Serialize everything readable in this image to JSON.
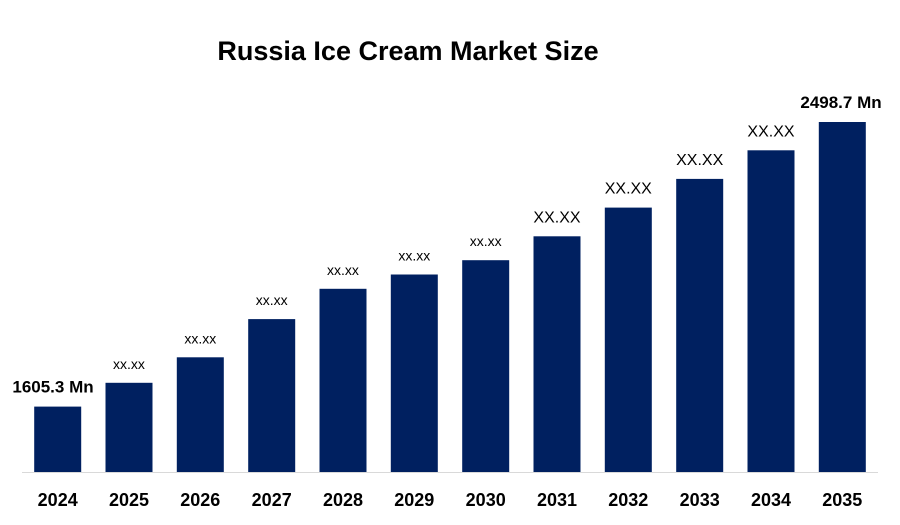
{
  "chart_data": {
    "type": "bar",
    "title": "Russia Ice Cream Market Size",
    "xlabel": "",
    "ylabel": "",
    "categories": [
      "2024",
      "2025",
      "2026",
      "2027",
      "2028",
      "2029",
      "2030",
      "2031",
      "2032",
      "2033",
      "2034",
      "2035"
    ],
    "values": [
      1605.3,
      1680,
      1760,
      1880,
      1975,
      2020,
      2065,
      2140,
      2230,
      2320,
      2410,
      2498.7
    ],
    "data_labels": [
      "1605.3 Mn",
      "xx.xx",
      "xx.xx",
      "xx.xx",
      "xx.xx",
      "xx.xx",
      "xx.xx",
      "XX.XX",
      "XX.XX",
      "XX.XX",
      "XX.XX",
      "2498.7 Mn"
    ],
    "ylim": [
      1400,
      2500
    ],
    "grid": false,
    "legend": "none",
    "bar_color": "#002060"
  }
}
